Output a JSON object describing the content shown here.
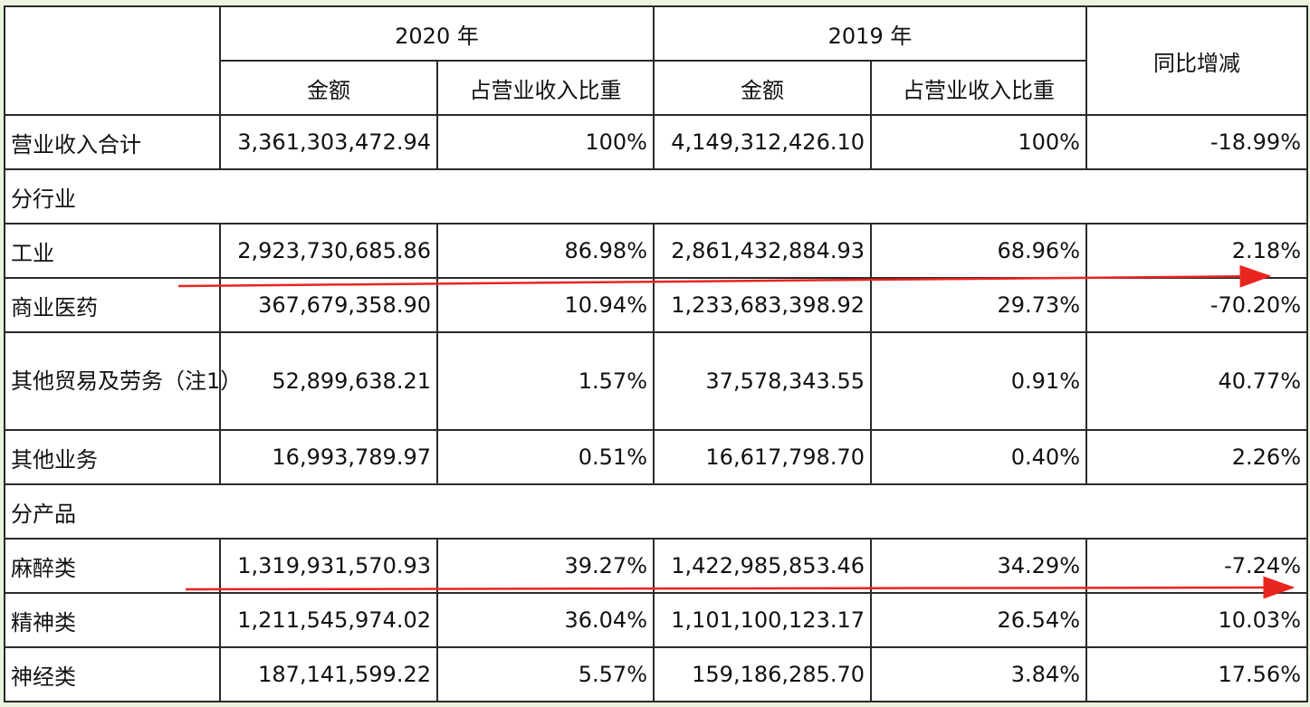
{
  "header": {
    "year2020": "2020 年",
    "year2019": "2019 年",
    "yoy": "同比增减",
    "amount": "金额",
    "share": "占营业收入比重"
  },
  "total": {
    "label": "营业收入合计",
    "amount2020": "3,361,303,472.94",
    "share2020": "100%",
    "amount2019": "4,149,312,426.10",
    "share2019": "100%",
    "yoy": "-18.99%"
  },
  "sections": [
    {
      "title": "分行业",
      "rows": [
        {
          "label": "工业",
          "amount2020": "2,923,730,685.86",
          "share2020": "86.98%",
          "amount2019": "2,861,432,884.93",
          "share2019": "68.96%",
          "yoy": "2.18%"
        },
        {
          "label": "商业医药",
          "amount2020": "367,679,358.90",
          "share2020": "10.94%",
          "amount2019": "1,233,683,398.92",
          "share2019": "29.73%",
          "yoy": "-70.20%"
        },
        {
          "label": "其他贸易及劳务（注1）",
          "amount2020": "52,899,638.21",
          "share2020": "1.57%",
          "amount2019": "37,578,343.55",
          "share2019": "0.91%",
          "yoy": "40.77%"
        },
        {
          "label": "其他业务",
          "amount2020": "16,993,789.97",
          "share2020": "0.51%",
          "amount2019": "16,617,798.70",
          "share2019": "0.40%",
          "yoy": "2.26%"
        }
      ]
    },
    {
      "title": "分产品",
      "rows": [
        {
          "label": "麻醉类",
          "amount2020": "1,319,931,570.93",
          "share2020": "39.27%",
          "amount2019": "1,422,985,853.46",
          "share2019": "34.29%",
          "yoy": "-7.24%"
        },
        {
          "label": "精神类",
          "amount2020": "1,211,545,974.02",
          "share2020": "36.04%",
          "amount2019": "1,101,100,123.17",
          "share2019": "26.54%",
          "yoy": "10.03%"
        },
        {
          "label": "神经类",
          "amount2020": "187,141,599.22",
          "share2020": "5.57%",
          "amount2019": "159,186,285.70",
          "share2019": "3.84%",
          "yoy": "17.56%"
        }
      ]
    }
  ],
  "annotations": {
    "arrow_color": "#e8251e"
  }
}
